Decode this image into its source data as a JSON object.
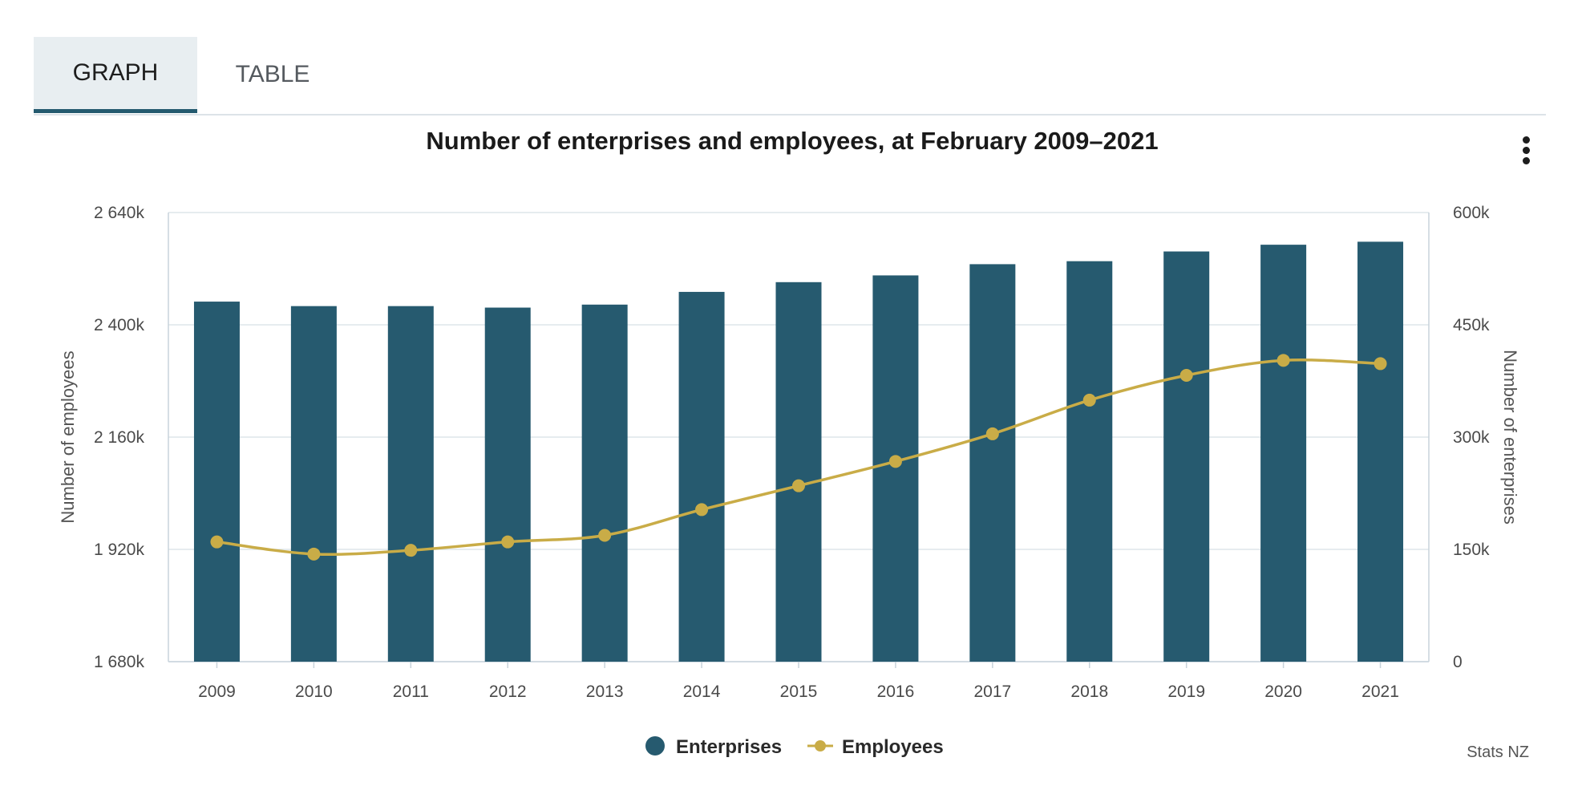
{
  "tabs": [
    {
      "label": "GRAPH",
      "active": true
    },
    {
      "label": "TABLE",
      "active": false
    }
  ],
  "menu": {
    "icon": "more-vertical-icon"
  },
  "credit": "Stats NZ",
  "colors": {
    "enterprises": "#265a6f",
    "employees": "#c9ac47",
    "grid": "#dde5ea"
  },
  "chart_data": {
    "type": "bar",
    "title": "Number of enterprises and employees, at February 2009–2021",
    "categories": [
      "2009",
      "2010",
      "2011",
      "2012",
      "2013",
      "2014",
      "2015",
      "2016",
      "2017",
      "2018",
      "2019",
      "2020",
      "2021"
    ],
    "series": [
      {
        "name": "Enterprises",
        "type": "bar",
        "axis": "right",
        "values": [
          481000,
          475000,
          475000,
          473000,
          477000,
          494000,
          507000,
          516000,
          531000,
          535000,
          548000,
          557000,
          561000
        ]
      },
      {
        "name": "Employees",
        "type": "line",
        "axis": "left",
        "values": [
          1936000,
          1910000,
          1918000,
          1936000,
          1950000,
          2005000,
          2056000,
          2108000,
          2167000,
          2239000,
          2292000,
          2324000,
          2317000
        ]
      }
    ],
    "y_left": {
      "label": "Number of employees",
      "ticks": [
        "1 680k",
        "1 920k",
        "2 160k",
        "2 400k",
        "2 640k"
      ],
      "range": [
        1680000,
        2640000
      ]
    },
    "y_right": {
      "label": "Number of enterprises",
      "ticks": [
        "0",
        "150k",
        "300k",
        "450k",
        "600k"
      ],
      "range": [
        0,
        600000
      ]
    },
    "grid": true,
    "legend": "bottom-center"
  }
}
